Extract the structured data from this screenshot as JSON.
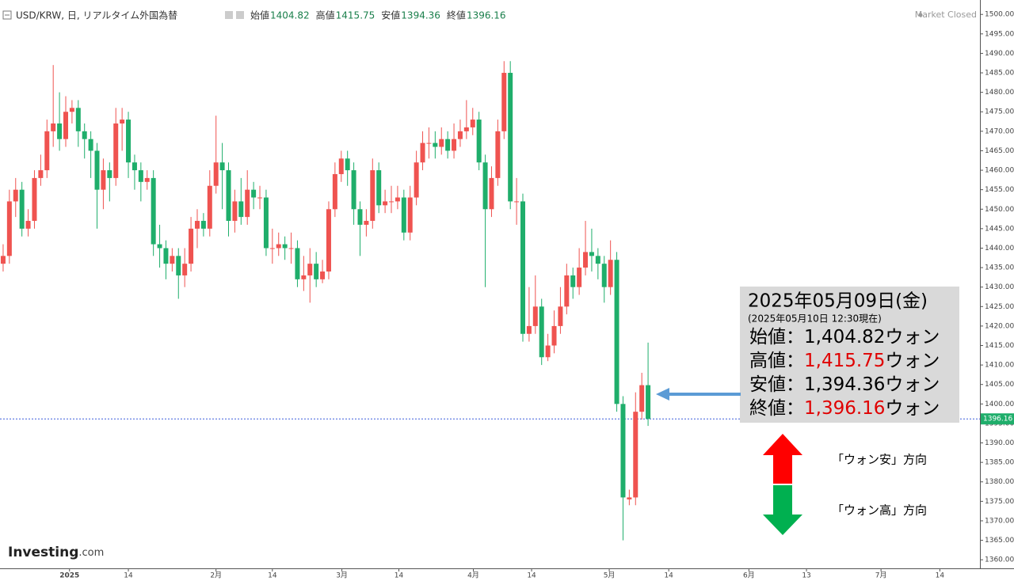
{
  "header": {
    "symbol": "USD/KRW, 日, リアルタイム外国為替",
    "ohlc": [
      {
        "label": "始値",
        "value": "1404.82"
      },
      {
        "label": "高値",
        "value": "1415.75"
      },
      {
        "label": "安値",
        "value": "1394.36"
      },
      {
        "label": "終値",
        "value": "1396.16"
      }
    ],
    "status": "Market Closed",
    "logo": "Investing",
    "logo_suffix": ".com"
  },
  "chart_data": {
    "type": "candlestick",
    "up_color": "#ef5350",
    "down_color": "#1fae6b",
    "open": [
      1436,
      1438,
      1452,
      1455,
      1445,
      1447,
      1458,
      1460,
      1470,
      1472,
      1468,
      1475,
      1476,
      1470,
      1468,
      1465,
      1455,
      1460,
      1458,
      1472,
      1473,
      1462,
      1460,
      1457,
      1458,
      1441,
      1440,
      1436,
      1438,
      1433,
      1436,
      1445,
      1447,
      1445,
      1456,
      1462,
      1460,
      1447,
      1452,
      1448,
      1455,
      1453,
      1453,
      1440,
      1440,
      1441,
      1440,
      1440,
      1432,
      1433,
      1436,
      1432,
      1434,
      1450,
      1459,
      1463,
      1460,
      1450,
      1446,
      1447,
      1460,
      1451,
      1452,
      1452,
      1453,
      1444,
      1453,
      1462,
      1467,
      1467,
      1466,
      1468,
      1465,
      1468,
      1470,
      1471,
      1473,
      1462,
      1450,
      1458,
      1470,
      1485,
      1452,
      1452,
      1418,
      1420,
      1425,
      1412,
      1415,
      1420,
      1425,
      1433,
      1430,
      1435,
      1439,
      1438,
      1436,
      1430,
      1437,
      1400,
      1375.5,
      1376,
      1398,
      1404.82
    ],
    "high": [
      1441,
      1455,
      1458,
      1457,
      1450,
      1460,
      1464,
      1473,
      1487,
      1480,
      1479,
      1478,
      1478,
      1472,
      1470,
      1467,
      1463,
      1462,
      1476,
      1476,
      1475,
      1464,
      1462,
      1460,
      1460,
      1446,
      1442,
      1440,
      1440,
      1440,
      1448,
      1450,
      1449,
      1460,
      1474,
      1467,
      1462,
      1455,
      1458,
      1460,
      1457,
      1456,
      1455,
      1445,
      1444,
      1443,
      1444,
      1442,
      1438,
      1440,
      1439,
      1437,
      1452,
      1462,
      1465,
      1465,
      1462,
      1452,
      1450,
      1463,
      1462,
      1455,
      1456,
      1456,
      1455,
      1456,
      1465,
      1470,
      1471,
      1470,
      1471,
      1470,
      1472,
      1473,
      1478,
      1476,
      1475,
      1464,
      1461,
      1473,
      1488,
      1488,
      1458,
      1454,
      1430,
      1433,
      1427,
      1418,
      1424,
      1430,
      1436,
      1435,
      1440,
      1447,
      1445,
      1440,
      1438,
      1442,
      1439,
      1402,
      1378,
      1403,
      1408,
      1415.75
    ],
    "low": [
      1434,
      1436,
      1448,
      1443,
      1443,
      1445,
      1456,
      1458,
      1466,
      1465,
      1466,
      1472,
      1466,
      1463,
      1458,
      1445,
      1450,
      1452,
      1456,
      1465,
      1458,
      1455,
      1452,
      1455,
      1438,
      1435,
      1432,
      1434,
      1427,
      1430,
      1434,
      1440,
      1443,
      1443,
      1454,
      1450,
      1443,
      1444,
      1446,
      1446,
      1450,
      1450,
      1438,
      1436,
      1438,
      1437,
      1436,
      1430,
      1429,
      1426,
      1430,
      1431,
      1432,
      1448,
      1457,
      1456,
      1446,
      1438,
      1443,
      1445,
      1449,
      1449,
      1449,
      1450,
      1442,
      1442,
      1451,
      1460,
      1463,
      1463,
      1464,
      1463,
      1463,
      1466,
      1468,
      1469,
      1460,
      1430,
      1448,
      1456,
      1468,
      1450,
      1446,
      1416,
      1416,
      1418,
      1410,
      1411,
      1413,
      1418,
      1423,
      1427,
      1428,
      1433,
      1434,
      1432,
      1426,
      1428,
      1398,
      1365,
      1374,
      1374,
      1396,
      1394.36
    ],
    "close": [
      1438,
      1452,
      1455,
      1445,
      1447,
      1458,
      1460,
      1470,
      1472,
      1468,
      1475,
      1476,
      1470,
      1468,
      1465,
      1455,
      1460,
      1458,
      1472,
      1473,
      1462,
      1460,
      1457,
      1458,
      1441,
      1440,
      1436,
      1438,
      1433,
      1436,
      1445,
      1447,
      1445,
      1456,
      1462,
      1460,
      1447,
      1452,
      1448,
      1455,
      1453,
      1453,
      1440,
      1440,
      1441,
      1440,
      1440,
      1432,
      1433,
      1436,
      1432,
      1434,
      1450,
      1459,
      1463,
      1460,
      1450,
      1446,
      1447,
      1460,
      1451,
      1452,
      1452,
      1453,
      1444,
      1453,
      1462,
      1467,
      1467,
      1466,
      1468,
      1465,
      1468,
      1470,
      1471,
      1473,
      1462,
      1450,
      1458,
      1470,
      1485,
      1452,
      1452,
      1418,
      1420,
      1425,
      1412,
      1415,
      1420,
      1425,
      1433,
      1430,
      1435,
      1439,
      1438,
      1436,
      1430,
      1437,
      1400,
      1376,
      1376,
      1398,
      1404.82,
      1396.16
    ],
    "price_line": 1396.16,
    "xlim": [
      -0.5,
      156
    ],
    "xticks": [
      {
        "value": 10.6,
        "label": "2025"
      },
      {
        "value": 20,
        "label": "14"
      },
      {
        "value": 34,
        "label": "2月"
      },
      {
        "value": 43,
        "label": "14"
      },
      {
        "value": 54.1,
        "label": "3月"
      },
      {
        "value": 63.2,
        "label": "14"
      },
      {
        "value": 75.1,
        "label": "4月"
      },
      {
        "value": 84.4,
        "label": "14"
      },
      {
        "value": 96.8,
        "label": "5月"
      },
      {
        "value": 106.3,
        "label": "14"
      },
      {
        "value": 119.1,
        "label": "6月"
      },
      {
        "value": 128.3,
        "label": "13"
      },
      {
        "value": 140.2,
        "label": "7月"
      },
      {
        "value": 149.6,
        "label": "14"
      }
    ],
    "ylim": [
      1357.8,
      1503.7
    ],
    "yticks": [
      {
        "value": 1360,
        "label": "1360.00"
      },
      {
        "value": 1365,
        "label": "1365.00"
      },
      {
        "value": 1370,
        "label": "1370.00"
      },
      {
        "value": 1375,
        "label": "1375.00"
      },
      {
        "value": 1380,
        "label": "1380.00"
      },
      {
        "value": 1385,
        "label": "1385.00"
      },
      {
        "value": 1390,
        "label": "1390.00"
      },
      {
        "value": 1395,
        "label": "1395.00"
      },
      {
        "value": 1400,
        "label": "1400.00"
      },
      {
        "value": 1405,
        "label": "1405.00"
      },
      {
        "value": 1410,
        "label": "1410.00"
      },
      {
        "value": 1415,
        "label": "1415.00"
      },
      {
        "value": 1420,
        "label": "1420.00"
      },
      {
        "value": 1425,
        "label": "1425.00"
      },
      {
        "value": 1430,
        "label": "1430.00"
      },
      {
        "value": 1435,
        "label": "1435.00"
      },
      {
        "value": 1440,
        "label": "1440.00"
      },
      {
        "value": 1445,
        "label": "1445.00"
      },
      {
        "value": 1450,
        "label": "1450.00"
      },
      {
        "value": 1455,
        "label": "1455.00"
      },
      {
        "value": 1460,
        "label": "1460.00"
      },
      {
        "value": 1465,
        "label": "1465.00"
      },
      {
        "value": 1470,
        "label": "1470.00"
      },
      {
        "value": 1475,
        "label": "1475.00"
      },
      {
        "value": 1480,
        "label": "1480.00"
      },
      {
        "value": 1485,
        "label": "1485.00"
      },
      {
        "value": 1490,
        "label": "1490.00"
      },
      {
        "value": 1495,
        "label": "1495.00"
      },
      {
        "value": 1500,
        "label": "1500.00"
      }
    ]
  },
  "annotation": {
    "date": "2025年05月09日(金)",
    "asof": "(2025年05月10日 12:30現在)",
    "rows": [
      {
        "label": "始値：",
        "value": "1,404.82",
        "unit": "ウォン",
        "color": "#000000"
      },
      {
        "label": "高値：",
        "value": "1,415.75",
        "unit": "ウォン",
        "color": "#e00000"
      },
      {
        "label": "安値：",
        "value": "1,394.36",
        "unit": "ウォン",
        "color": "#000000"
      },
      {
        "label": "終値：",
        "value": "1,396.16",
        "unit": "ウォン",
        "color": "#e00000"
      }
    ]
  },
  "legend": {
    "up": "「ウォン安」方向",
    "down": "「ウォン高」方向"
  }
}
